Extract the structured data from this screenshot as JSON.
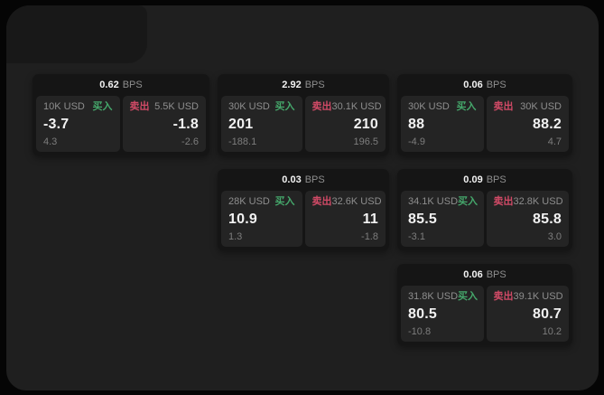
{
  "theme": {
    "page_bg": "#050505",
    "window_bg": "#1f1f1f",
    "card_bg": "#151515",
    "panel_bg": "#242424",
    "text_primary": "#f2f2f2",
    "text_secondary": "#8e8e8e",
    "buy_color": "#45a76b",
    "sell_color": "#d04a66"
  },
  "labels": {
    "bps_unit": "BPS",
    "buy": "买入",
    "sell": "卖出"
  },
  "cards": [
    {
      "bps": "0.62",
      "row": 1,
      "col": 1,
      "buy": {
        "size": "10K USD",
        "price": "-3.7",
        "delta": "4.3"
      },
      "sell": {
        "size": "5.5K USD",
        "price": "-1.8",
        "delta": "-2.6"
      }
    },
    {
      "bps": "2.92",
      "row": 1,
      "col": 2,
      "buy": {
        "size": "30K USD",
        "price": "201",
        "delta": "-188.1"
      },
      "sell": {
        "size": "30.1K USD",
        "price": "210",
        "delta": "196.5"
      }
    },
    {
      "bps": "0.06",
      "row": 1,
      "col": 3,
      "buy": {
        "size": "30K USD",
        "price": "88",
        "delta": "-4.9"
      },
      "sell": {
        "size": "30K USD",
        "price": "88.2",
        "delta": "4.7"
      }
    },
    {
      "bps": "0.03",
      "row": 2,
      "col": 2,
      "buy": {
        "size": "28K USD",
        "price": "10.9",
        "delta": "1.3"
      },
      "sell": {
        "size": "32.6K USD",
        "price": "11",
        "delta": "-1.8"
      }
    },
    {
      "bps": "0.09",
      "row": 2,
      "col": 3,
      "buy": {
        "size": "34.1K USD",
        "price": "85.5",
        "delta": "-3.1"
      },
      "sell": {
        "size": "32.8K USD",
        "price": "85.8",
        "delta": "3.0"
      }
    },
    {
      "bps": "0.06",
      "row": 3,
      "col": 3,
      "buy": {
        "size": "31.8K USD",
        "price": "80.5",
        "delta": "-10.8"
      },
      "sell": {
        "size": "39.1K USD",
        "price": "80.7",
        "delta": "10.2"
      }
    }
  ]
}
